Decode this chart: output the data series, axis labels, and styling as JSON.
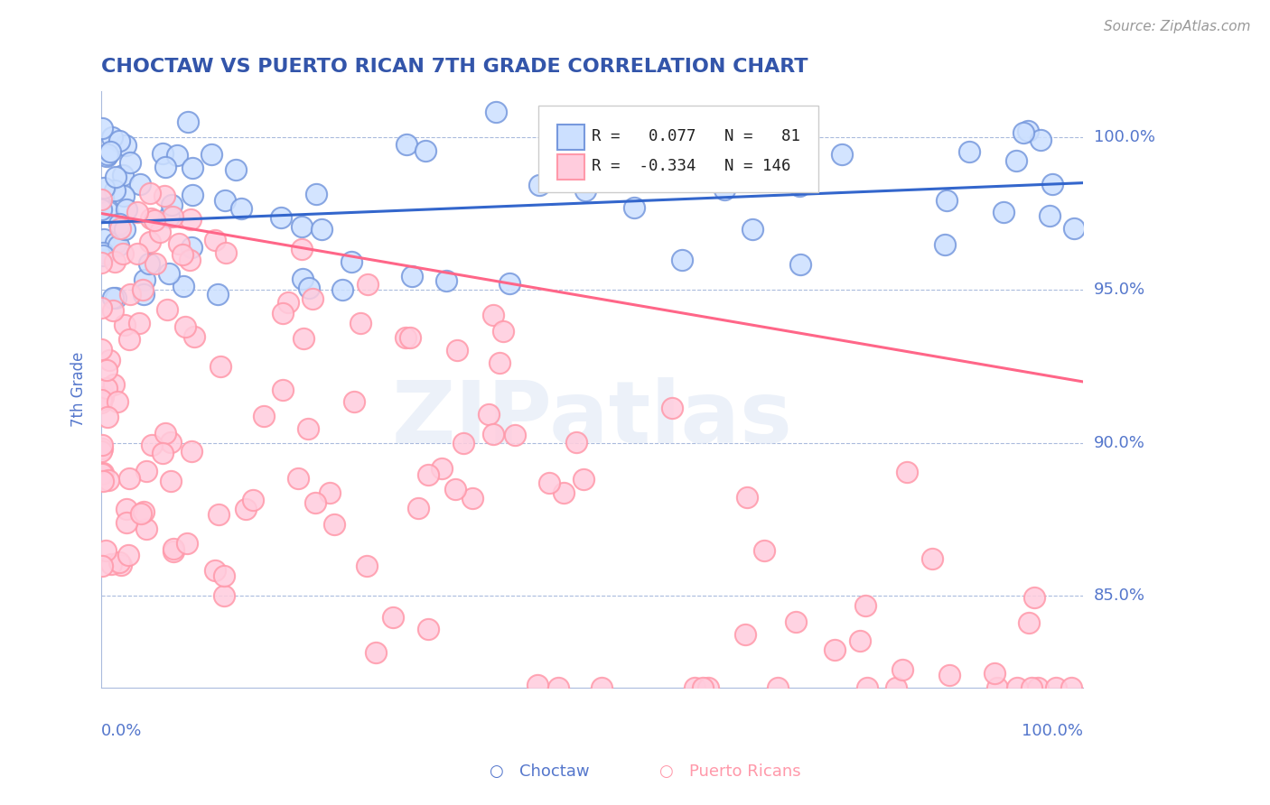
{
  "title": "CHOCTAW VS PUERTO RICAN 7TH GRADE CORRELATION CHART",
  "source": "Source: ZipAtlas.com",
  "ylabel": "7th Grade",
  "ytick_labels": [
    "85.0%",
    "90.0%",
    "95.0%",
    "100.0%"
  ],
  "ytick_values": [
    0.85,
    0.9,
    0.95,
    1.0
  ],
  "xmin": 0.0,
  "xmax": 1.0,
  "ymin": 0.82,
  "ymax": 1.015,
  "blue_R": 0.077,
  "blue_N": 81,
  "pink_R": -0.334,
  "pink_N": 146,
  "blue_face_color": "#CCE0FF",
  "blue_edge_color": "#7799DD",
  "pink_face_color": "#FFCCDD",
  "pink_edge_color": "#FF99AA",
  "blue_line_color": "#3366CC",
  "pink_line_color": "#FF6688",
  "title_color": "#3355AA",
  "axis_label_color": "#5577CC",
  "grid_color": "#AABBDD",
  "background_color": "#FFFFFF",
  "legend_label_blue": "Choctaw",
  "legend_label_pink": "Puerto Ricans",
  "blue_line_y": [
    0.972,
    0.985
  ],
  "pink_line_y": [
    0.975,
    0.92
  ],
  "blue_seed": 42,
  "pink_seed": 123
}
